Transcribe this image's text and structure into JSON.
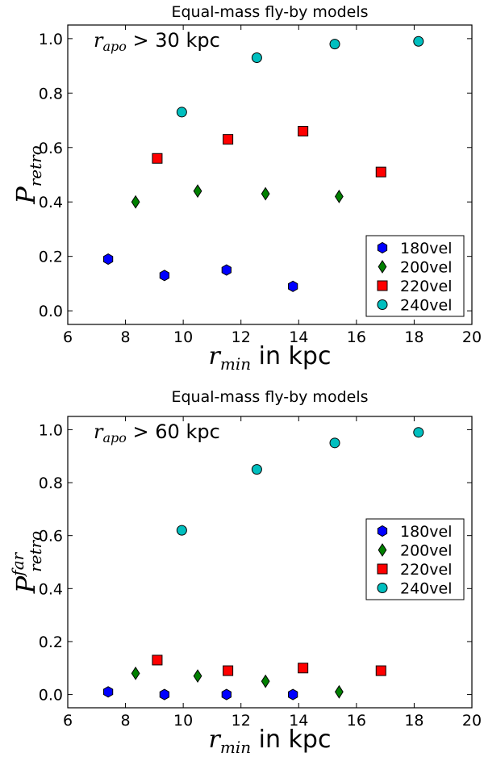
{
  "colors": {
    "180vel": "#0000ff",
    "200vel": "#008000",
    "220vel": "#ff0000",
    "240vel": "#00bfbf"
  },
  "chart_data": [
    {
      "type": "scatter",
      "title": "Equal-mass fly-by models",
      "annotation": {
        "var": "r",
        "sub": "apo",
        "rest": " > 30 kpc"
      },
      "xlabel": {
        "var": "r",
        "sub": "min",
        "rest": " in kpc"
      },
      "ylabel": {
        "var": "P",
        "sub": "retro",
        "sup": ""
      },
      "xlim": [
        6,
        20
      ],
      "ylim": [
        -0.05,
        1.05
      ],
      "xticks": [
        "6",
        "8",
        "10",
        "12",
        "14",
        "16",
        "18",
        "20"
      ],
      "yticks": [
        "0.0",
        "0.2",
        "0.4",
        "0.6",
        "0.8",
        "1.0"
      ],
      "legend_position": "lower-right",
      "series": [
        {
          "name": "180vel",
          "marker": "hexagon",
          "color": "#0000ff",
          "x": [
            7.4,
            9.35,
            11.5,
            13.8
          ],
          "y": [
            0.19,
            0.13,
            0.15,
            0.09
          ]
        },
        {
          "name": "200vel",
          "marker": "diamond",
          "color": "#008000",
          "x": [
            8.35,
            10.5,
            12.85,
            15.4
          ],
          "y": [
            0.4,
            0.44,
            0.43,
            0.42
          ]
        },
        {
          "name": "220vel",
          "marker": "square",
          "color": "#ff0000",
          "x": [
            9.1,
            11.55,
            14.15,
            16.85
          ],
          "y": [
            0.56,
            0.63,
            0.66,
            0.51
          ]
        },
        {
          "name": "240vel",
          "marker": "circle",
          "color": "#00bfbf",
          "x": [
            9.95,
            12.55,
            15.25,
            18.15
          ],
          "y": [
            0.73,
            0.93,
            0.98,
            0.99
          ]
        }
      ]
    },
    {
      "type": "scatter",
      "title": "Equal-mass fly-by models",
      "annotation": {
        "var": "r",
        "sub": "apo",
        "rest": " > 60 kpc"
      },
      "xlabel": {
        "var": "r",
        "sub": "min",
        "rest": " in kpc"
      },
      "ylabel": {
        "var": "P",
        "sub": "retro",
        "sup": "far"
      },
      "xlim": [
        6,
        20
      ],
      "ylim": [
        -0.05,
        1.05
      ],
      "xticks": [
        "6",
        "8",
        "10",
        "12",
        "14",
        "16",
        "18",
        "20"
      ],
      "yticks": [
        "0.0",
        "0.2",
        "0.4",
        "0.6",
        "0.8",
        "1.0"
      ],
      "legend_position": "center-right",
      "series": [
        {
          "name": "180vel",
          "marker": "hexagon",
          "color": "#0000ff",
          "x": [
            7.4,
            9.35,
            11.5,
            13.8
          ],
          "y": [
            0.01,
            0.0,
            0.0,
            0.0
          ]
        },
        {
          "name": "200vel",
          "marker": "diamond",
          "color": "#008000",
          "x": [
            8.35,
            10.5,
            12.85,
            15.4
          ],
          "y": [
            0.08,
            0.07,
            0.05,
            0.01
          ]
        },
        {
          "name": "220vel",
          "marker": "square",
          "color": "#ff0000",
          "x": [
            9.1,
            11.55,
            14.15,
            16.85
          ],
          "y": [
            0.13,
            0.09,
            0.1,
            0.09
          ]
        },
        {
          "name": "240vel",
          "marker": "circle",
          "color": "#00bfbf",
          "x": [
            9.95,
            12.55,
            15.25,
            18.15
          ],
          "y": [
            0.62,
            0.85,
            0.95,
            0.99
          ]
        }
      ]
    }
  ]
}
